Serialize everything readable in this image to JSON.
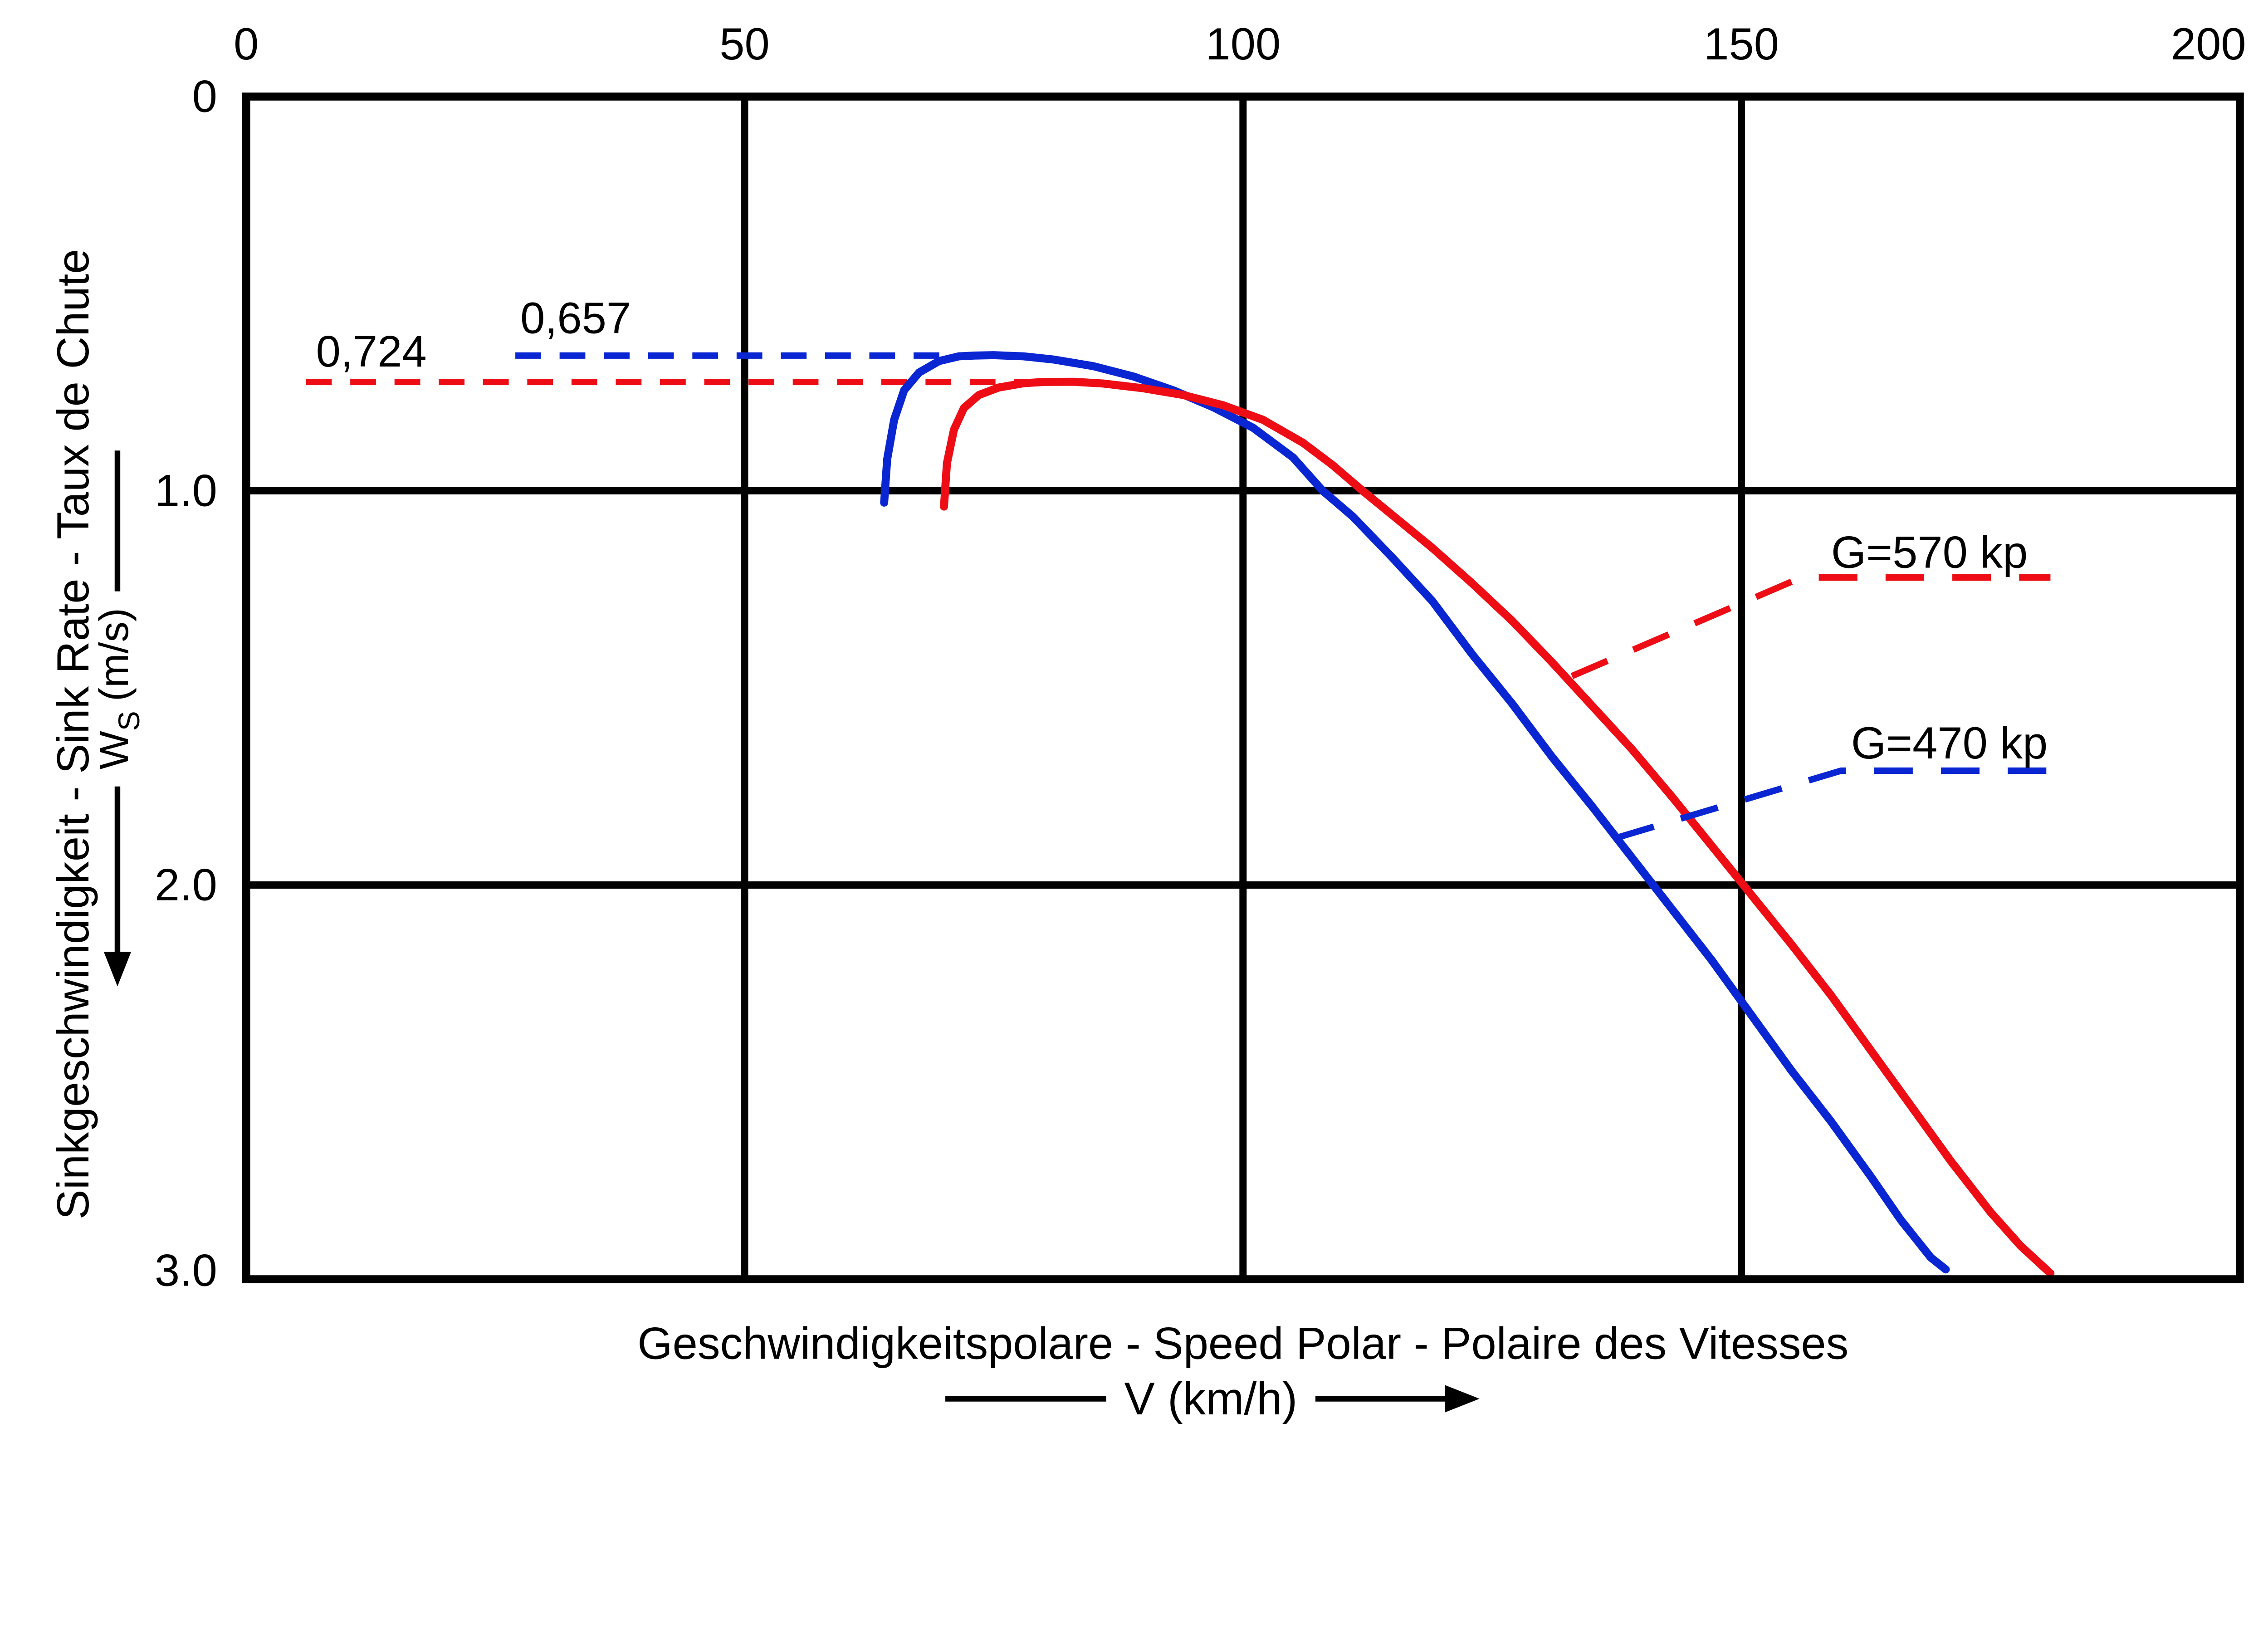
{
  "chart_data": {
    "type": "line",
    "title": "Geschwindigkeitspolare - Speed Polar - Polaire des Vitesses",
    "xlabel": "V (km/h)",
    "ylabel": "Sinkgeschwindigkeit - Sink Rate - Taux de Chute",
    "ylabel_unit": {
      "pre": "W",
      "sub": "S",
      "post": "(m/s)"
    },
    "xlim": [
      0,
      200
    ],
    "ylim": [
      0,
      3
    ],
    "x_ticks": [
      "0",
      "50",
      "100",
      "150",
      "200"
    ],
    "y_ticks": [
      "0",
      "1.0",
      "2.0",
      "3.0"
    ],
    "x_gridlines": [
      50,
      100,
      150
    ],
    "y_gridlines": [
      1,
      2
    ],
    "grid": true,
    "legend_position": "inline-labels",
    "colors": {
      "blue": "#0a26d2",
      "red": "#ee0d15",
      "black": "#000000"
    },
    "series": [
      {
        "name": "G=470 kp",
        "color_key": "blue",
        "points": [
          [
            64,
            1.03
          ],
          [
            64.3,
            0.92
          ],
          [
            65,
            0.82
          ],
          [
            66,
            0.745
          ],
          [
            67.5,
            0.7
          ],
          [
            69.5,
            0.671
          ],
          [
            71.5,
            0.659
          ],
          [
            73,
            0.657
          ],
          [
            75,
            0.656
          ],
          [
            78,
            0.659
          ],
          [
            81,
            0.667
          ],
          [
            85,
            0.684
          ],
          [
            89,
            0.71
          ],
          [
            93,
            0.745
          ],
          [
            97,
            0.788
          ],
          [
            101,
            0.84
          ],
          [
            105,
            0.915
          ],
          [
            108,
            1.0
          ],
          [
            111,
            1.065
          ],
          [
            115,
            1.17
          ],
          [
            119,
            1.28
          ],
          [
            123,
            1.415
          ],
          [
            127,
            1.54
          ],
          [
            131,
            1.675
          ],
          [
            135,
            1.8
          ],
          [
            139,
            1.93
          ],
          [
            143,
            2.06
          ],
          [
            147,
            2.19
          ],
          [
            151,
            2.33
          ],
          [
            155,
            2.47
          ],
          [
            159,
            2.6
          ],
          [
            163,
            2.74
          ],
          [
            166,
            2.85
          ],
          [
            169,
            2.945
          ],
          [
            170.5,
            2.975
          ]
        ]
      },
      {
        "name": "G=570 kp",
        "color_key": "red",
        "points": [
          [
            70,
            1.04
          ],
          [
            70.3,
            0.93
          ],
          [
            71,
            0.845
          ],
          [
            72,
            0.79
          ],
          [
            73.5,
            0.757
          ],
          [
            75.5,
            0.738
          ],
          [
            78,
            0.727
          ],
          [
            80,
            0.724
          ],
          [
            83,
            0.7235
          ],
          [
            86,
            0.728
          ],
          [
            90,
            0.74
          ],
          [
            94,
            0.757
          ],
          [
            98,
            0.783
          ],
          [
            102,
            0.82
          ],
          [
            106,
            0.878
          ],
          [
            109,
            0.935
          ],
          [
            112,
            1.0
          ],
          [
            115,
            1.062
          ],
          [
            119,
            1.145
          ],
          [
            123,
            1.235
          ],
          [
            127,
            1.33
          ],
          [
            131,
            1.435
          ],
          [
            135,
            1.545
          ],
          [
            139,
            1.655
          ],
          [
            143,
            1.775
          ],
          [
            147,
            1.9
          ],
          [
            151,
            2.025
          ],
          [
            155,
            2.15
          ],
          [
            159,
            2.28
          ],
          [
            163,
            2.42
          ],
          [
            167,
            2.56
          ],
          [
            171,
            2.7
          ],
          [
            175,
            2.83
          ],
          [
            178,
            2.915
          ],
          [
            181,
            2.985
          ]
        ]
      }
    ],
    "min_sink_annotations": [
      {
        "text": "0,724",
        "value": 0.724,
        "color_key": "red",
        "from_v": 6,
        "to_v": 80,
        "label_v": 7,
        "label_w": 0.685
      },
      {
        "text": "0,657",
        "value": 0.657,
        "color_key": "blue",
        "from_v": 27,
        "to_v": 73,
        "label_v": 27.5,
        "label_w": 0.6
      }
    ],
    "weight_labels": [
      {
        "text": "G=570 kp",
        "color_key": "red",
        "attach": [
          133,
          1.47
        ],
        "elbow": [
          156,
          1.22
        ],
        "end": [
          181,
          1.22
        ],
        "label_v": 159,
        "label_w": 1.195
      },
      {
        "text": "G=470 kp",
        "color_key": "blue",
        "attach": [
          137.5,
          1.88
        ],
        "elbow": [
          160,
          1.71
        ],
        "end": [
          181.5,
          1.71
        ],
        "label_v": 161,
        "label_w": 1.679
      }
    ]
  }
}
